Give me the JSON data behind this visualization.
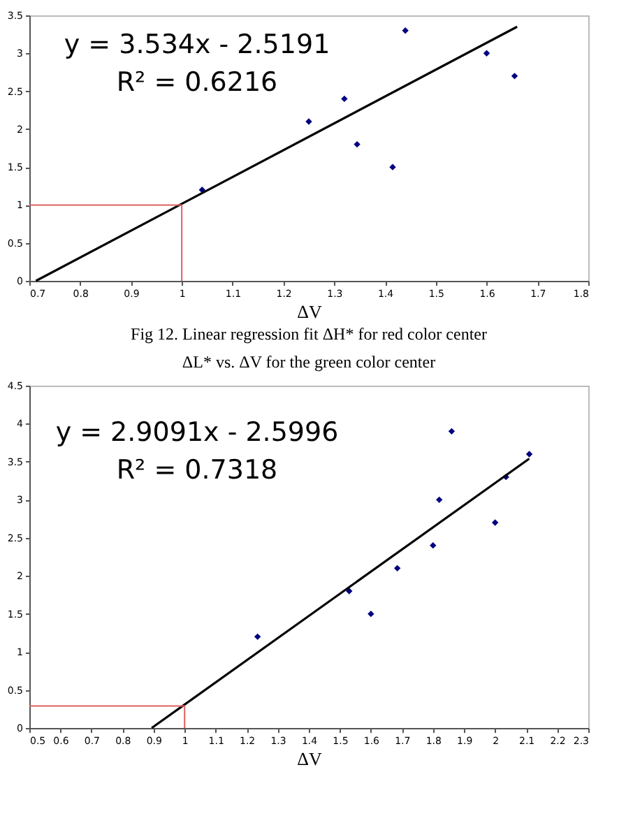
{
  "chart_data": [
    {
      "type": "scatter",
      "xlabel": "ΔV",
      "xlim": [
        0.7,
        1.8
      ],
      "ylim": [
        0,
        3.5
      ],
      "xticks": [
        0.7,
        0.8,
        0.9,
        1,
        1.1,
        1.2,
        1.3,
        1.4,
        1.5,
        1.6,
        1.7,
        1.8
      ],
      "yticks": [
        0,
        0.5,
        1,
        1.5,
        2,
        2.5,
        3,
        3.5
      ],
      "grid": false,
      "marker": "diamond",
      "annotations": [
        "y = 3.534x - 2.5191",
        "R² = 0.6216",
        "Fig 12. Linear regression fit ΔH* for red color center"
      ],
      "series": [
        {
          "color": "#000080",
          "x": [
            1.04,
            1.25,
            1.32,
            1.345,
            1.415,
            1.44,
            1.6,
            1.655
          ],
          "values": [
            1.2,
            2.1,
            2.4,
            1.8,
            1.5,
            3.3,
            3.0,
            2.7
          ]
        },
        {
          "type": "line",
          "color": "#000000",
          "marker": "none",
          "x": [
            0.713,
            1.66
          ],
          "values": [
            0,
            3.35
          ]
        },
        {
          "type": "line",
          "color": "#e06060",
          "marker": "none",
          "x": [
            0.7,
            1,
            1
          ],
          "values": [
            1,
            1,
            0
          ]
        }
      ]
    },
    {
      "type": "scatter",
      "title": "ΔL* vs. ΔV for the green color center",
      "xlabel": "ΔV",
      "xlim": [
        0.5,
        2.3
      ],
      "ylim": [
        0,
        4.5
      ],
      "xticks": [
        0.5,
        0.6,
        0.7,
        0.8,
        0.9,
        1,
        1.1,
        1.2,
        1.3,
        1.4,
        1.5,
        1.6,
        1.7,
        1.8,
        1.9,
        2,
        2.1,
        2.2,
        2.3
      ],
      "yticks": [
        0,
        0.5,
        1,
        1.5,
        2,
        2.5,
        3,
        3.5,
        4,
        4.5
      ],
      "grid": false,
      "marker": "diamond",
      "annotations": [
        "y = 2.9091x - 2.5996",
        "R² = 0.7318"
      ],
      "series": [
        {
          "color": "#000080",
          "x": [
            1.235,
            1.53,
            1.6,
            1.685,
            1.8,
            1.82,
            1.86,
            2.0,
            2.035,
            2.11
          ],
          "values": [
            1.2,
            1.8,
            1.5,
            2.1,
            2.4,
            3.0,
            3.9,
            2.7,
            3.3,
            3.6
          ]
        },
        {
          "type": "line",
          "color": "#000000",
          "marker": "none",
          "x": [
            0.894,
            2.11
          ],
          "values": [
            0,
            3.54
          ]
        },
        {
          "type": "line",
          "color": "#e06060",
          "marker": "none",
          "x": [
            0.5,
            1,
            1
          ],
          "values": [
            0.29,
            0.29,
            0
          ]
        }
      ]
    }
  ]
}
